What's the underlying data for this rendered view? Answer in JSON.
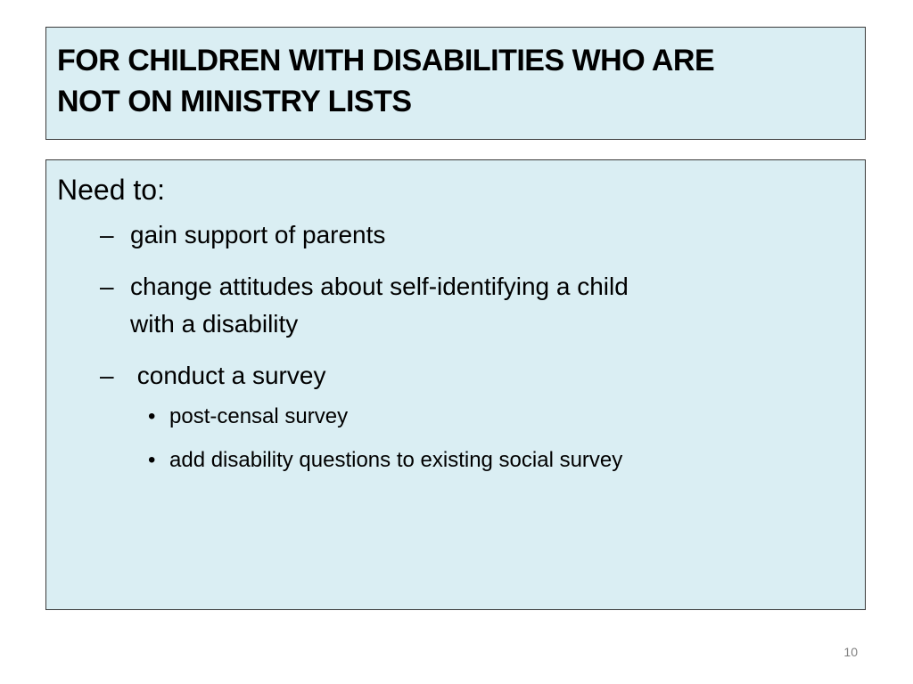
{
  "title": {
    "line1": "FOR CHILDREN WITH DISABILITIES WHO ARE",
    "line2": "NOT ON MINISTRY LISTS"
  },
  "content": {
    "lead": "Need to:",
    "dash_symbol": "–",
    "bullet_symbol": "•",
    "items": [
      {
        "text": "gain support of parents"
      },
      {
        "text_line1": "change attitudes about self-identifying a child",
        "text_line2": "with a disability"
      },
      {
        "text": " conduct a survey",
        "subitems": [
          {
            "text": "post-censal survey"
          },
          {
            "text": "add disability questions to existing social survey"
          }
        ]
      }
    ]
  },
  "footer": {
    "page_number": "10"
  },
  "colors": {
    "box_fill": "#daeef3",
    "box_border": "#3a3a3a",
    "page_number": "#7f7f7f"
  }
}
